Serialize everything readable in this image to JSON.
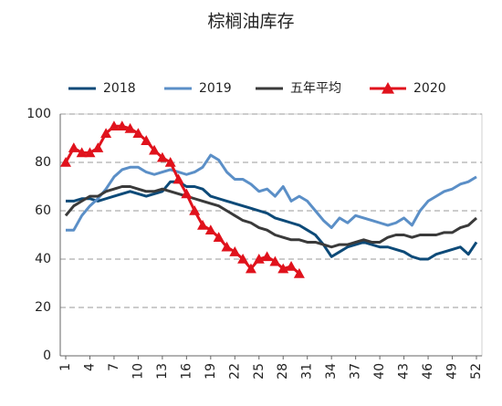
{
  "chart_data": {
    "type": "line",
    "title": "棕榈油库存",
    "x": [
      1,
      2,
      3,
      4,
      5,
      6,
      7,
      8,
      9,
      10,
      11,
      12,
      13,
      14,
      15,
      16,
      17,
      18,
      19,
      20,
      21,
      22,
      23,
      24,
      25,
      26,
      27,
      28,
      29,
      30,
      31,
      32,
      33,
      34,
      35,
      36,
      37,
      38,
      39,
      40,
      41,
      42,
      43,
      44,
      45,
      46,
      47,
      48,
      49,
      50,
      51,
      52
    ],
    "xlim": [
      1,
      52
    ],
    "xticks": [
      1,
      4,
      7,
      10,
      13,
      16,
      19,
      22,
      25,
      28,
      31,
      34,
      37,
      40,
      43,
      46,
      49,
      52
    ],
    "ylim": [
      0,
      100
    ],
    "yticks": [
      0,
      20,
      40,
      60,
      80,
      100
    ],
    "grid": true,
    "series": [
      {
        "name": "2018",
        "color": "#0d4a78",
        "values": [
          64,
          64,
          65,
          65,
          64,
          65,
          66,
          67,
          68,
          67,
          66,
          67,
          68,
          72,
          72,
          70,
          70,
          69,
          66,
          65,
          64,
          63,
          62,
          61,
          60,
          59,
          57,
          56,
          55,
          54,
          52,
          50,
          46,
          41,
          43,
          45,
          46,
          47,
          46,
          45,
          45,
          44,
          43,
          41,
          40,
          40,
          42,
          43,
          44,
          45,
          42,
          47
        ]
      },
      {
        "name": "2019",
        "color": "#5b8fc7",
        "values": [
          52,
          52,
          58,
          62,
          65,
          69,
          74,
          77,
          78,
          78,
          76,
          75,
          76,
          77,
          76,
          75,
          76,
          78,
          83,
          81,
          76,
          73,
          73,
          71,
          68,
          69,
          66,
          70,
          64,
          66,
          64,
          60,
          56,
          53,
          57,
          55,
          58,
          57,
          56,
          55,
          54,
          55,
          57,
          54,
          60,
          64,
          66,
          68,
          69,
          71,
          72,
          74
        ]
      },
      {
        "name": "五年平均",
        "color": "#3a3a3a",
        "values": [
          58,
          62,
          64,
          66,
          66,
          68,
          69,
          70,
          70,
          69,
          68,
          68,
          69,
          68,
          67,
          66,
          65,
          64,
          63,
          62,
          60,
          58,
          56,
          55,
          53,
          52,
          50,
          49,
          48,
          48,
          47,
          47,
          46,
          45,
          46,
          46,
          47,
          48,
          47,
          47,
          49,
          50,
          50,
          49,
          50,
          50,
          50,
          51,
          51,
          53,
          54,
          57
        ]
      },
      {
        "name": "2020",
        "color": "#e0121c",
        "marker": "triangle",
        "values": [
          80,
          86,
          84,
          84,
          86,
          92,
          95,
          95,
          94,
          92,
          89,
          85,
          82,
          80,
          73,
          67,
          60,
          54,
          52,
          49,
          45,
          43,
          40,
          36,
          40,
          41,
          39,
          36,
          37,
          34,
          null,
          null,
          null,
          null,
          null,
          null,
          null,
          null,
          null,
          null,
          null,
          null,
          null,
          null,
          null,
          null,
          null,
          null,
          null,
          null,
          null,
          null
        ]
      }
    ]
  }
}
